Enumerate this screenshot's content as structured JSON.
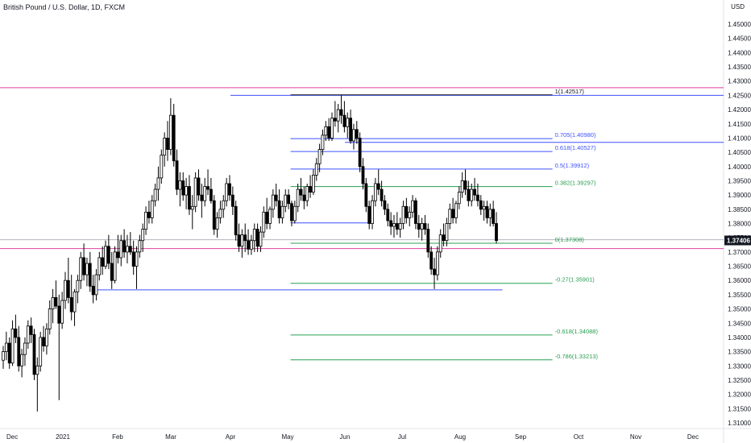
{
  "title": "British Pound / U.S. Dollar, 1D, FXCM",
  "currency_label": "USD",
  "colors": {
    "candle": "#000000",
    "axis_line": "#9598a1",
    "magenta": "#e040a0",
    "blue": "#3f51ff",
    "green": "#27a050",
    "gray": "#b2b5be",
    "black_line": "#131722",
    "price_badge": "#131722"
  },
  "chart_data": {
    "type": "candlestick",
    "title": "British Pound / U.S. Dollar, 1D, FXCM",
    "x_tick_labels": [
      "Dec",
      "2021",
      "Feb",
      "Mar",
      "Apr",
      "May",
      "Jun",
      "Jul",
      "Aug",
      "Sep",
      "Oct",
      "Nov",
      "Dec"
    ],
    "y_tick_labels": [
      "1.31000",
      "1.31500",
      "1.32000",
      "1.32500",
      "1.33000",
      "1.33500",
      "1.34000",
      "1.34500",
      "1.35000",
      "1.35500",
      "1.36000",
      "1.36500",
      "1.37000",
      "1.37500",
      "1.38000",
      "1.38500",
      "1.39000",
      "1.39500",
      "1.40000",
      "1.40500",
      "1.41000",
      "1.41500",
      "1.42000",
      "1.42500",
      "1.43000",
      "1.43500",
      "1.44000",
      "1.44500",
      "1.45000"
    ],
    "ylim": [
      1.3075,
      1.4545
    ],
    "last_price": "1.37406",
    "horizontal_lines": [
      {
        "price": 1.4277,
        "color": "magenta"
      },
      {
        "price": 1.3712,
        "color": "magenta"
      },
      {
        "price": 1.3743,
        "color": "gray"
      },
      {
        "price": 1.425,
        "color": "blue",
        "start_month": 4.0
      },
      {
        "price": 1.4085,
        "color": "blue",
        "start_month": 6.0
      },
      {
        "price": 1.3567,
        "color": "blue",
        "start_month": 1.55,
        "end_month": 8.7
      }
    ],
    "fib_levels": [
      {
        "label": "1(1.42517)",
        "price": 1.42517,
        "color": "black_line"
      },
      {
        "label": "0.705(1.40980)",
        "price": 1.4098,
        "color": "blue"
      },
      {
        "label": "0.618(1.40527)",
        "price": 1.40527,
        "color": "blue"
      },
      {
        "label": "0.5(1.39912)",
        "price": 1.39912,
        "color": "blue"
      },
      {
        "label": "0.382(1.39297)",
        "price": 1.39297,
        "color": "green"
      },
      {
        "label": "0(1.37308)",
        "price": 1.37308,
        "color": "green"
      },
      {
        "label": "-0.27(1.35901)",
        "price": 1.35901,
        "color": "green"
      },
      {
        "label": "-0.618(1.34088)",
        "price": 1.34088,
        "color": "green"
      },
      {
        "label": "-0.786(1.33213)",
        "price": 1.33213,
        "color": "green"
      }
    ],
    "trend_line": {
      "start_month": 5.05,
      "end_month": 6.4,
      "price": 1.3802,
      "color": "blue"
    },
    "fib_range_months": [
      5.05,
      9.55
    ],
    "candles_ohlc": [
      [
        1.332,
        1.337,
        1.329,
        1.335
      ],
      [
        1.335,
        1.342,
        1.332,
        1.338
      ],
      [
        1.338,
        1.34,
        1.329,
        1.331
      ],
      [
        1.331,
        1.346,
        1.33,
        1.343
      ],
      [
        1.343,
        1.348,
        1.338,
        1.34
      ],
      [
        1.34,
        1.344,
        1.328,
        1.33
      ],
      [
        1.33,
        1.336,
        1.326,
        1.334
      ],
      [
        1.334,
        1.34,
        1.33,
        1.338
      ],
      [
        1.338,
        1.346,
        1.336,
        1.344
      ],
      [
        1.344,
        1.347,
        1.338,
        1.341
      ],
      [
        1.341,
        1.343,
        1.325,
        1.327
      ],
      [
        1.327,
        1.333,
        1.314,
        1.33
      ],
      [
        1.33,
        1.342,
        1.328,
        1.34
      ],
      [
        1.34,
        1.344,
        1.335,
        1.337
      ],
      [
        1.337,
        1.345,
        1.334,
        1.343
      ],
      [
        1.343,
        1.353,
        1.341,
        1.35
      ],
      [
        1.35,
        1.357,
        1.345,
        1.354
      ],
      [
        1.354,
        1.36,
        1.35,
        1.351
      ],
      [
        1.351,
        1.355,
        1.318,
        1.345
      ],
      [
        1.345,
        1.356,
        1.343,
        1.353
      ],
      [
        1.353,
        1.363,
        1.35,
        1.36
      ],
      [
        1.36,
        1.368,
        1.352,
        1.354
      ],
      [
        1.354,
        1.362,
        1.346,
        1.349
      ],
      [
        1.349,
        1.357,
        1.344,
        1.356
      ],
      [
        1.356,
        1.362,
        1.352,
        1.36
      ],
      [
        1.36,
        1.37,
        1.357,
        1.368
      ],
      [
        1.368,
        1.373,
        1.36,
        1.362
      ],
      [
        1.362,
        1.368,
        1.358,
        1.366
      ],
      [
        1.366,
        1.37,
        1.356,
        1.358
      ],
      [
        1.358,
        1.362,
        1.352,
        1.355
      ],
      [
        1.355,
        1.364,
        1.353,
        1.362
      ],
      [
        1.362,
        1.37,
        1.36,
        1.368
      ],
      [
        1.368,
        1.372,
        1.362,
        1.365
      ],
      [
        1.365,
        1.374,
        1.364,
        1.372
      ],
      [
        1.372,
        1.376,
        1.364,
        1.366
      ],
      [
        1.366,
        1.37,
        1.357,
        1.36
      ],
      [
        1.36,
        1.372,
        1.359,
        1.37
      ],
      [
        1.37,
        1.376,
        1.366,
        1.368
      ],
      [
        1.368,
        1.376,
        1.365,
        1.374
      ],
      [
        1.374,
        1.378,
        1.368,
        1.37
      ],
      [
        1.37,
        1.376,
        1.366,
        1.372
      ],
      [
        1.372,
        1.377,
        1.369,
        1.37
      ],
      [
        1.37,
        1.374,
        1.362,
        1.365
      ],
      [
        1.365,
        1.372,
        1.357,
        1.37
      ],
      [
        1.37,
        1.376,
        1.368,
        1.374
      ],
      [
        1.374,
        1.38,
        1.37,
        1.378
      ],
      [
        1.378,
        1.386,
        1.376,
        1.384
      ],
      [
        1.384,
        1.388,
        1.38,
        1.382
      ],
      [
        1.382,
        1.39,
        1.38,
        1.388
      ],
      [
        1.388,
        1.394,
        1.386,
        1.392
      ],
      [
        1.392,
        1.4,
        1.388,
        1.396
      ],
      [
        1.396,
        1.406,
        1.394,
        1.404
      ],
      [
        1.404,
        1.412,
        1.4,
        1.41
      ],
      [
        1.41,
        1.416,
        1.402,
        1.406
      ],
      [
        1.406,
        1.424,
        1.404,
        1.418
      ],
      [
        1.418,
        1.422,
        1.4,
        1.402
      ],
      [
        1.402,
        1.406,
        1.39,
        1.392
      ],
      [
        1.392,
        1.398,
        1.386,
        1.395
      ],
      [
        1.395,
        1.398,
        1.388,
        1.39
      ],
      [
        1.39,
        1.396,
        1.385,
        1.393
      ],
      [
        1.393,
        1.397,
        1.383,
        1.385
      ],
      [
        1.385,
        1.39,
        1.378,
        1.386
      ],
      [
        1.386,
        1.398,
        1.384,
        1.396
      ],
      [
        1.396,
        1.399,
        1.388,
        1.39
      ],
      [
        1.39,
        1.394,
        1.382,
        1.388
      ],
      [
        1.388,
        1.396,
        1.386,
        1.393
      ],
      [
        1.393,
        1.399,
        1.39,
        1.392
      ],
      [
        1.392,
        1.396,
        1.387,
        1.388
      ],
      [
        1.388,
        1.39,
        1.376,
        1.378
      ],
      [
        1.378,
        1.384,
        1.375,
        1.382
      ],
      [
        1.382,
        1.388,
        1.38,
        1.385
      ],
      [
        1.385,
        1.39,
        1.382,
        1.388
      ],
      [
        1.388,
        1.396,
        1.386,
        1.394
      ],
      [
        1.394,
        1.397,
        1.388,
        1.39
      ],
      [
        1.39,
        1.393,
        1.383,
        1.386
      ],
      [
        1.386,
        1.388,
        1.374,
        1.376
      ],
      [
        1.376,
        1.38,
        1.37,
        1.372
      ],
      [
        1.372,
        1.378,
        1.368,
        1.376
      ],
      [
        1.376,
        1.38,
        1.37,
        1.374
      ],
      [
        1.374,
        1.378,
        1.369,
        1.371
      ],
      [
        1.371,
        1.376,
        1.369,
        1.374
      ],
      [
        1.374,
        1.38,
        1.37,
        1.378
      ],
      [
        1.378,
        1.38,
        1.37,
        1.372
      ],
      [
        1.372,
        1.379,
        1.37,
        1.377
      ],
      [
        1.377,
        1.386,
        1.375,
        1.384
      ],
      [
        1.384,
        1.389,
        1.378,
        1.38
      ],
      [
        1.38,
        1.386,
        1.378,
        1.385
      ],
      [
        1.385,
        1.392,
        1.382,
        1.39
      ],
      [
        1.39,
        1.394,
        1.386,
        1.388
      ],
      [
        1.388,
        1.392,
        1.38,
        1.382
      ],
      [
        1.382,
        1.388,
        1.38,
        1.386
      ],
      [
        1.386,
        1.392,
        1.384,
        1.39
      ],
      [
        1.39,
        1.392,
        1.385,
        1.387
      ],
      [
        1.387,
        1.388,
        1.379,
        1.381
      ],
      [
        1.381,
        1.388,
        1.38,
        1.386
      ],
      [
        1.386,
        1.394,
        1.384,
        1.392
      ],
      [
        1.392,
        1.396,
        1.388,
        1.39
      ],
      [
        1.39,
        1.393,
        1.385,
        1.388
      ],
      [
        1.388,
        1.394,
        1.386,
        1.393
      ],
      [
        1.393,
        1.397,
        1.389,
        1.391
      ],
      [
        1.391,
        1.399,
        1.39,
        1.397
      ],
      [
        1.397,
        1.403,
        1.395,
        1.401
      ],
      [
        1.401,
        1.408,
        1.398,
        1.406
      ],
      [
        1.406,
        1.413,
        1.404,
        1.411
      ],
      [
        1.411,
        1.416,
        1.409,
        1.414
      ],
      [
        1.414,
        1.417,
        1.409,
        1.41
      ],
      [
        1.41,
        1.419,
        1.409,
        1.417
      ],
      [
        1.417,
        1.423,
        1.414,
        1.416
      ],
      [
        1.416,
        1.422,
        1.412,
        1.42
      ],
      [
        1.42,
        1.425,
        1.415,
        1.418
      ],
      [
        1.418,
        1.423,
        1.412,
        1.414
      ],
      [
        1.414,
        1.419,
        1.41,
        1.417
      ],
      [
        1.417,
        1.42,
        1.408,
        1.409
      ],
      [
        1.409,
        1.415,
        1.406,
        1.413
      ],
      [
        1.413,
        1.416,
        1.408,
        1.41
      ],
      [
        1.41,
        1.412,
        1.398,
        1.4
      ],
      [
        1.4,
        1.403,
        1.392,
        1.394
      ],
      [
        1.394,
        1.396,
        1.384,
        1.386
      ],
      [
        1.386,
        1.388,
        1.378,
        1.38
      ],
      [
        1.38,
        1.39,
        1.378,
        1.388
      ],
      [
        1.388,
        1.396,
        1.386,
        1.394
      ],
      [
        1.394,
        1.399,
        1.39,
        1.392
      ],
      [
        1.392,
        1.395,
        1.386,
        1.388
      ],
      [
        1.388,
        1.39,
        1.383,
        1.385
      ],
      [
        1.385,
        1.387,
        1.379,
        1.381
      ],
      [
        1.381,
        1.384,
        1.376,
        1.379
      ],
      [
        1.379,
        1.383,
        1.375,
        1.38
      ],
      [
        1.38,
        1.384,
        1.376,
        1.378
      ],
      [
        1.378,
        1.382,
        1.375,
        1.38
      ],
      [
        1.38,
        1.388,
        1.378,
        1.386
      ],
      [
        1.386,
        1.389,
        1.38,
        1.382
      ],
      [
        1.382,
        1.386,
        1.379,
        1.384
      ],
      [
        1.384,
        1.39,
        1.382,
        1.388
      ],
      [
        1.388,
        1.389,
        1.378,
        1.38
      ],
      [
        1.38,
        1.383,
        1.375,
        1.378
      ],
      [
        1.378,
        1.382,
        1.374,
        1.38
      ],
      [
        1.38,
        1.383,
        1.376,
        1.378
      ],
      [
        1.378,
        1.38,
        1.368,
        1.37
      ],
      [
        1.37,
        1.372,
        1.362,
        1.364
      ],
      [
        1.364,
        1.368,
        1.357,
        1.362
      ],
      [
        1.362,
        1.372,
        1.36,
        1.37
      ],
      [
        1.37,
        1.378,
        1.368,
        1.376
      ],
      [
        1.376,
        1.38,
        1.372,
        1.374
      ],
      [
        1.374,
        1.382,
        1.372,
        1.38
      ],
      [
        1.38,
        1.387,
        1.378,
        1.385
      ],
      [
        1.385,
        1.389,
        1.38,
        1.382
      ],
      [
        1.382,
        1.388,
        1.38,
        1.387
      ],
      [
        1.387,
        1.393,
        1.385,
        1.391
      ],
      [
        1.391,
        1.398,
        1.389,
        1.395
      ],
      [
        1.395,
        1.399,
        1.39,
        1.392
      ],
      [
        1.392,
        1.395,
        1.386,
        1.388
      ],
      [
        1.388,
        1.394,
        1.386,
        1.392
      ],
      [
        1.392,
        1.396,
        1.388,
        1.39
      ],
      [
        1.39,
        1.394,
        1.386,
        1.388
      ],
      [
        1.388,
        1.39,
        1.383,
        1.385
      ],
      [
        1.385,
        1.388,
        1.381,
        1.386
      ],
      [
        1.386,
        1.388,
        1.38,
        1.382
      ],
      [
        1.382,
        1.387,
        1.379,
        1.385
      ],
      [
        1.385,
        1.388,
        1.379,
        1.38
      ],
      [
        1.38,
        1.384,
        1.373,
        1.374
      ]
    ]
  },
  "chart_x_mapping_note": ""
}
